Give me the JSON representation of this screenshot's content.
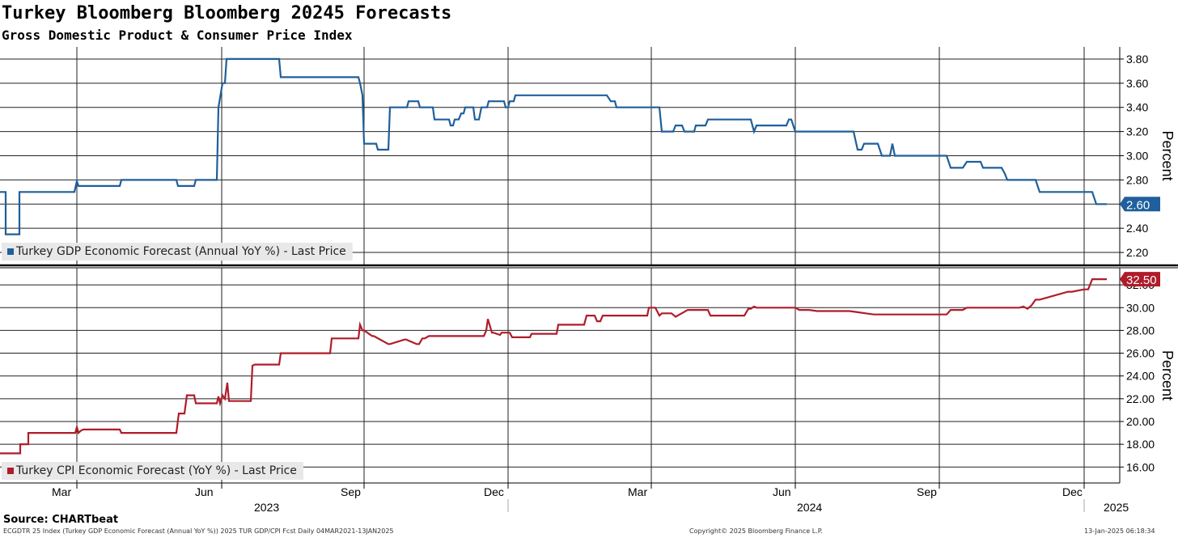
{
  "header": {
    "title": "Turkey Bloomberg Bloomberg 20245 Forecasts",
    "subtitle": "Gross Domestic Product & Consumer Price Index"
  },
  "footer": {
    "source": "Source: CHARTbeat",
    "index_info": "ECGDTR 25 Index (Turkey GDP Economic Forecast (Annual YoY %)) 2025 TUR GDP/CPI Fcst  Daily 04MAR2021-13JAN2025",
    "copyright": "Copyright© 2025 Bloomberg Finance L.P.",
    "timestamp": "13-Jan-2025 06:18:34"
  },
  "colors": {
    "gdp": "#1f5f9c",
    "cpi": "#b01c2a",
    "grid": "#000000",
    "legend_bg": "#e8e8e8"
  },
  "chart_data": [
    {
      "type": "line",
      "name": "gdp",
      "ylabel": "Percent",
      "ylim": [
        2.1,
        3.9
      ],
      "yticks": [
        "2.20",
        "2.40",
        "2.60",
        "2.80",
        "3.00",
        "3.20",
        "3.40",
        "3.60",
        "3.80"
      ],
      "legend": "Turkey GDP Economic Forecast (Annual YoY %) - Last Price",
      "last_value": "2.60",
      "series": [
        {
          "name": "Turkey GDP Economic Forecast (Annual YoY %) - Last Price",
          "x": [
            0,
            7,
            7,
            24,
            24,
            92,
            95,
            97,
            148,
            150,
            218,
            220,
            240,
            242,
            268,
            270,
            275,
            278,
            280,
            345,
            347,
            443,
            445,
            448,
            450,
            465,
            467,
            480,
            482,
            503,
            505,
            517,
            519,
            535,
            537,
            555,
            557,
            560,
            562,
            567,
            570,
            573,
            575,
            585,
            587,
            592,
            595,
            602,
            604,
            623,
            625,
            628,
            630,
            635,
            637,
            750,
            755,
            760,
            762,
            815,
            818,
            832,
            835,
            843,
            846,
            858,
            860,
            872,
            875,
            928,
            932,
            935,
            937,
            972,
            975,
            978,
            983,
            1055,
            1060,
            1065,
            1068,
            1085,
            1090,
            1100,
            1103,
            1106,
            1110,
            1170,
            1175,
            1190,
            1195,
            1212,
            1215,
            1238,
            1242,
            1245,
            1250,
            1280,
            1285,
            1350,
            1355,
            1368
          ],
          "y": [
            2.7,
            2.7,
            2.35,
            2.35,
            2.7,
            2.7,
            2.79,
            2.75,
            2.75,
            2.8,
            2.8,
            2.75,
            2.75,
            2.8,
            2.8,
            3.4,
            3.6,
            3.6,
            3.8,
            3.8,
            3.65,
            3.65,
            3.6,
            3.5,
            3.1,
            3.1,
            3.05,
            3.05,
            3.4,
            3.4,
            3.45,
            3.45,
            3.4,
            3.4,
            3.3,
            3.3,
            3.25,
            3.25,
            3.3,
            3.3,
            3.35,
            3.35,
            3.4,
            3.4,
            3.3,
            3.3,
            3.4,
            3.4,
            3.45,
            3.45,
            3.4,
            3.4,
            3.45,
            3.45,
            3.5,
            3.5,
            3.45,
            3.45,
            3.4,
            3.4,
            3.2,
            3.2,
            3.25,
            3.25,
            3.2,
            3.2,
            3.25,
            3.25,
            3.3,
            3.3,
            3.2,
            3.25,
            3.25,
            3.25,
            3.3,
            3.3,
            3.2,
            3.2,
            3.05,
            3.05,
            3.1,
            3.1,
            3.0,
            3.0,
            3.1,
            3.0,
            3.0,
            3.0,
            2.9,
            2.9,
            2.95,
            2.95,
            2.9,
            2.9,
            2.85,
            2.8,
            2.8,
            2.8,
            2.7,
            2.7,
            2.6,
            2.6
          ]
        }
      ]
    },
    {
      "type": "line",
      "name": "cpi",
      "ylabel": "Percent",
      "ylim": [
        14.6,
        33.5
      ],
      "yticks": [
        "16.00",
        "18.00",
        "20.00",
        "22.00",
        "24.00",
        "26.00",
        "28.00",
        "30.00",
        "32.00"
      ],
      "legend": "Turkey CPI Economic Forecast (YoY %) - Last Price",
      "last_value": "32.50",
      "series": [
        {
          "name": "Turkey CPI Economic Forecast (YoY %) - Last Price",
          "x": [
            0,
            25,
            25,
            35,
            35,
            93,
            95,
            97,
            100,
            103,
            148,
            150,
            218,
            221,
            228,
            231,
            240,
            242,
            268,
            270,
            272,
            275,
            278,
            281,
            283,
            286,
            288,
            310,
            312,
            315,
            345,
            347,
            408,
            410,
            443,
            445,
            448,
            450,
            460,
            462,
            480,
            482,
            500,
            502,
            515,
            518,
            522,
            525,
            530,
            532,
            598,
            601,
            603,
            608,
            610,
            618,
            620,
            630,
            633,
            640,
            645,
            655,
            657,
            688,
            690,
            722,
            725,
            735,
            738,
            742,
            745,
            800,
            802,
            810,
            815,
            818,
            830,
            835,
            845,
            850,
            875,
            878,
            920,
            925,
            928,
            932,
            935,
            983,
            988,
            1000,
            1010,
            1050,
            1060,
            1070,
            1080,
            1100,
            1110,
            1170,
            1175,
            1190,
            1195,
            1220,
            1230,
            1260,
            1265,
            1270,
            1275,
            1280,
            1285,
            1320,
            1325,
            1340,
            1345,
            1350,
            1352,
            1355,
            1368
          ],
          "y": [
            17.2,
            17.2,
            18.0,
            18.0,
            19.0,
            19.0,
            19.5,
            19.0,
            19.2,
            19.3,
            19.3,
            19.0,
            19.0,
            20.7,
            20.7,
            22.3,
            22.3,
            21.6,
            21.6,
            22.2,
            21.6,
            22.3,
            22.0,
            23.4,
            21.8,
            21.8,
            21.8,
            21.8,
            24.9,
            25.0,
            25.0,
            26.0,
            26.0,
            27.3,
            27.3,
            28.5,
            28.0,
            28.0,
            27.5,
            27.5,
            26.8,
            26.8,
            27.2,
            27.2,
            26.8,
            26.8,
            27.3,
            27.3,
            27.5,
            27.5,
            27.5,
            28.0,
            29.0,
            27.8,
            27.8,
            27.6,
            27.8,
            27.8,
            27.4,
            27.4,
            27.4,
            27.4,
            27.7,
            27.7,
            28.5,
            28.5,
            29.3,
            29.3,
            28.8,
            28.8,
            29.3,
            29.3,
            30.0,
            30.0,
            29.3,
            29.5,
            29.5,
            29.2,
            29.6,
            29.8,
            29.8,
            29.3,
            29.3,
            29.9,
            29.9,
            30.1,
            30.0,
            30.0,
            29.8,
            29.8,
            29.7,
            29.7,
            29.6,
            29.5,
            29.4,
            29.4,
            29.4,
            29.4,
            29.8,
            29.8,
            30.0,
            30.0,
            30.0,
            30.0,
            30.1,
            29.9,
            30.2,
            30.7,
            30.7,
            31.4,
            31.4,
            31.6,
            31.6,
            32.5,
            32.5,
            32.5,
            32.5
          ]
        }
      ]
    }
  ],
  "x_axis": {
    "months": [
      {
        "label": "Mar",
        "x": 64
      },
      {
        "label": "Jun",
        "x": 241
      },
      {
        "label": "Sep",
        "x": 421
      },
      {
        "label": "Dec",
        "x": 598
      },
      {
        "label": "Mar",
        "x": 776
      },
      {
        "label": "Jun",
        "x": 955
      },
      {
        "label": "Sep",
        "x": 1133
      },
      {
        "label": "Dec",
        "x": 1313
      }
    ],
    "years": [
      {
        "label": "2023",
        "x": 314
      },
      {
        "label": "2024",
        "x": 985
      },
      {
        "label": "2025",
        "x": 1364
      }
    ],
    "vlines": [
      95,
      274,
      450,
      628,
      805,
      983,
      1161,
      1340
    ]
  }
}
